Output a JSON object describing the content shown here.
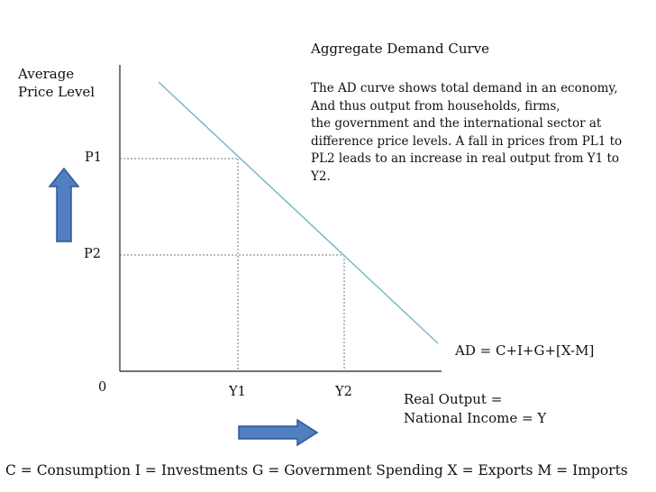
{
  "title": "Aggregate Demand Curve",
  "description_lines": [
    "The AD curve shows total demand in an economy,",
    "And thus output from households, firms,",
    "the government and the international sector at",
    "difference price levels. A fall in prices from PL1 to",
    "PL2 leads to an increase in real output from Y1 to",
    "Y2."
  ],
  "y_axis_label_lines": [
    "Average",
    "Price Level"
  ],
  "x_axis_label_lines": [
    "Real Output =",
    "National Income = Y"
  ],
  "origin_label": "0",
  "price_ticks": [
    "P1",
    "P2"
  ],
  "output_ticks": [
    "Y1",
    "Y2"
  ],
  "curve_label": "AD = C+I+G+[X-M]",
  "legend": "C = Consumption I = Investments G = Government Spending X = Exports M = Imports",
  "colors": {
    "ad_curve": "#7ab6cc",
    "arrow_fill": "#4f7fbf",
    "arrow_stroke": "#2f5597",
    "axis": "#222222",
    "guide_lines": "#777777"
  }
}
